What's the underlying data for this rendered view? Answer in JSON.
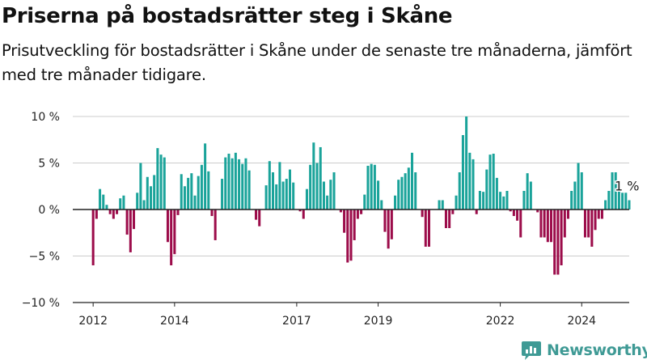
{
  "header": {
    "title": "Priserna på bostadsrätter steg i Skåne",
    "subtitle": "Prisutveckling för bostadsrätter i Skåne under de senaste tre månaderna, jämfört med tre månader tidigare."
  },
  "brand": {
    "name": "Newsworthy",
    "color": "#3f9a95",
    "icon": "bar-chart-speech-bubble-icon"
  },
  "colors": {
    "positive": "#1aa39a",
    "negative": "#9c0c4a",
    "zero_line": "#222222",
    "grid": "#cccccc"
  },
  "chart_data": {
    "type": "bar",
    "title": "Priserna på bostadsrätter steg i Skåne",
    "subtitle": "Prisutveckling för bostadsrätter i Skåne under de senaste tre månaderna, jämfört med tre månader tidigare.",
    "xlabel": "",
    "ylabel": "",
    "unit": "%",
    "ylim": [
      -10,
      10
    ],
    "yticks": [
      10,
      5,
      0,
      -5,
      -10
    ],
    "ytick_labels": [
      "10 %",
      "5 %",
      "0 %",
      "−5 %",
      "−10 %"
    ],
    "x_axis_type": "date",
    "x_range": [
      "2011-07",
      "2025-03"
    ],
    "xticks": [
      {
        "date": "2012-01",
        "label": "2012"
      },
      {
        "date": "2014-01",
        "label": "2014"
      },
      {
        "date": "2017-01",
        "label": "2017"
      },
      {
        "date": "2019-01",
        "label": "2019"
      },
      {
        "date": "2022-01",
        "label": "2022"
      },
      {
        "date": "2024-01",
        "label": "2024"
      }
    ],
    "last_value_label": "1 %",
    "grid": true,
    "series": [
      {
        "frequency": "monthly",
        "start": "2012-01",
        "values": [
          -6,
          -1,
          2.2,
          1.6,
          0.5,
          -0.5,
          -1,
          -0.5,
          1.2,
          1.5,
          -2.7,
          -4.6,
          -2.1,
          1.8,
          5,
          1,
          3.5,
          2.5,
          3.7,
          6.6,
          5.9,
          5.6,
          -3.5,
          -6,
          -4.8,
          -0.6,
          3.8,
          2.5,
          3.4,
          3.9,
          1.5,
          3.6,
          4.8,
          7.1,
          4.1,
          -0.7,
          -3.3,
          0,
          3.3,
          5.6,
          6,
          5.5,
          6.1,
          5.4,
          4.9,
          5.5,
          4.2,
          0,
          -1.1,
          -1.8,
          0,
          2.6,
          5.2,
          4,
          2.7,
          5.1,
          3,
          3.3,
          4.3,
          2.9,
          0,
          -0.2,
          -1,
          2.2,
          4.8,
          7.2,
          5,
          6.7,
          3,
          1.5,
          3.2,
          4,
          0,
          -0.3,
          -2.5,
          -5.7,
          -5.5,
          -3.3,
          -1,
          -0.5,
          1.6,
          4.7,
          4.9,
          4.8,
          3.1,
          1,
          -2.4,
          -4.2,
          -3.2,
          1.5,
          3.2,
          3.5,
          3.9,
          4.5,
          6.1,
          4,
          0,
          -0.8,
          -4,
          -4,
          0,
          0,
          1,
          1,
          -2,
          -2,
          -0.5,
          1.5,
          4,
          8,
          10,
          6.1,
          5.4,
          -0.5,
          2,
          1.9,
          4.3,
          5.9,
          6,
          3.4,
          1.9,
          1.4,
          2,
          -0.2,
          -0.7,
          -1.2,
          -3,
          2,
          3.9,
          3,
          0,
          -0.3,
          -3,
          -3,
          -3.5,
          -3.5,
          -7,
          -7,
          -6,
          -3,
          -1,
          2,
          3,
          5,
          4,
          -3,
          -3,
          -4,
          -2.2,
          -1,
          -1,
          1,
          2,
          4,
          4,
          2.9,
          1.8,
          1.8,
          1
        ]
      }
    ]
  }
}
